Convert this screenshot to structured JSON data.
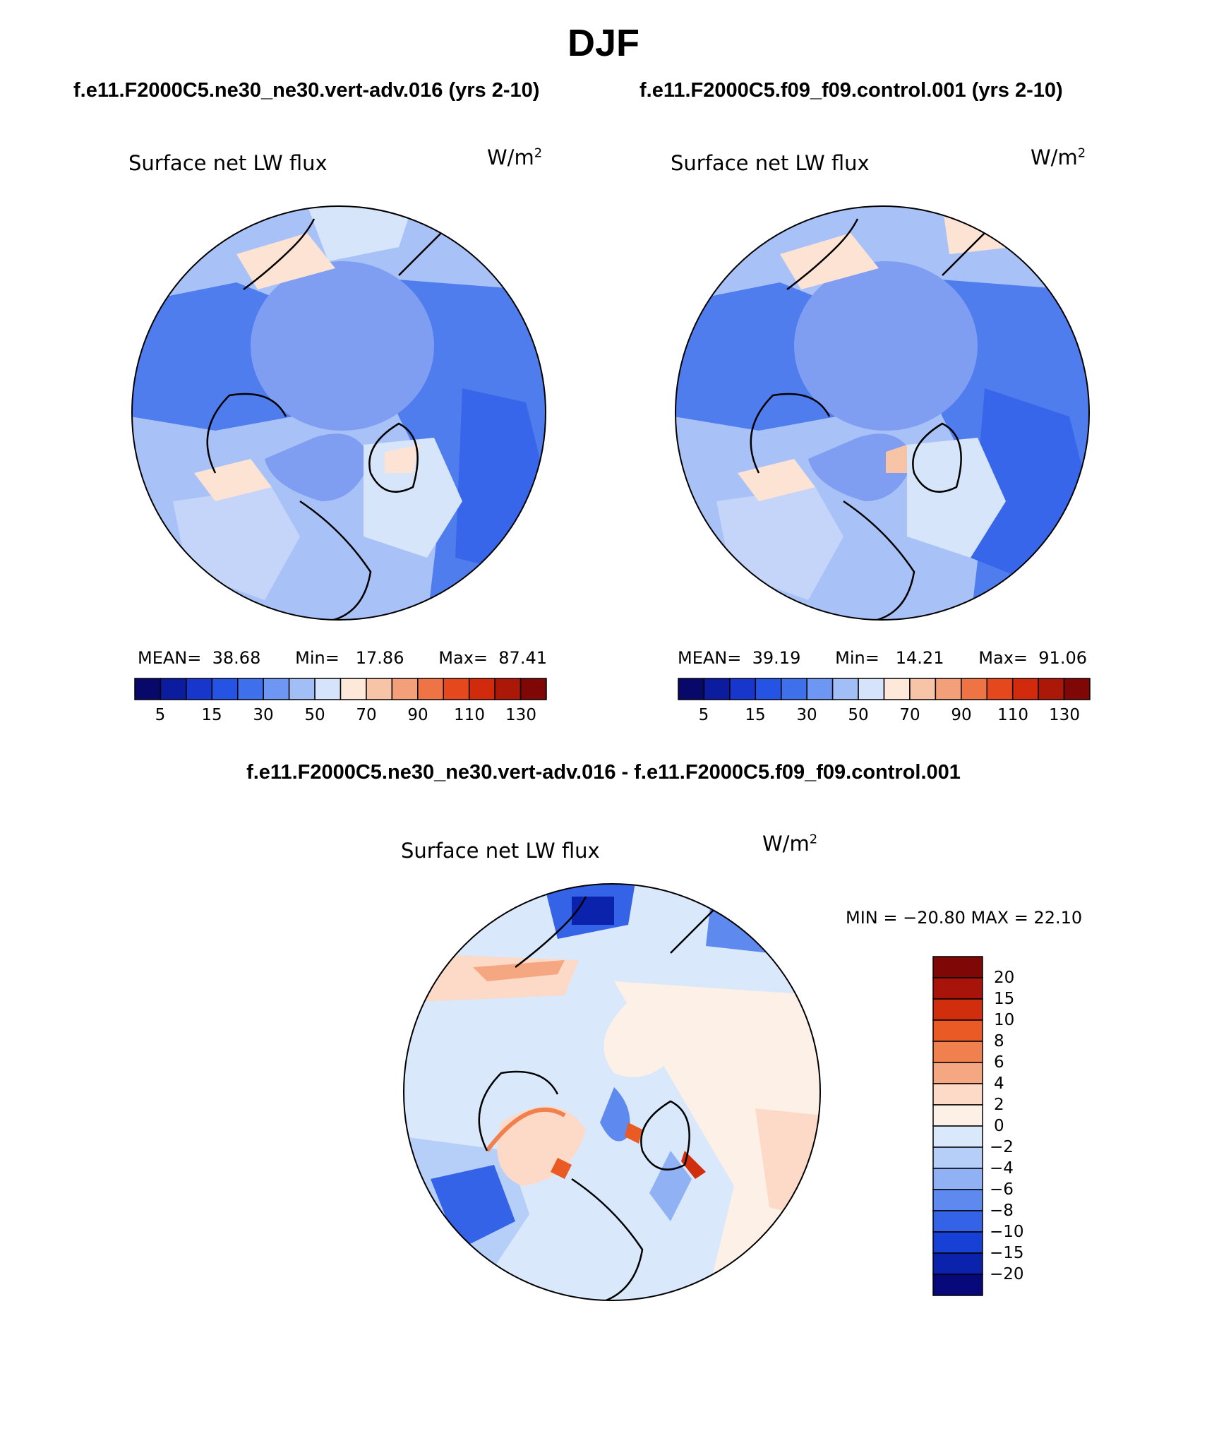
{
  "title": "DJF",
  "panels": [
    {
      "case_title": "f.e11.F2000C5.ne30_ne30.vert-adv.016 (yrs 2-10)",
      "variable": "Surface net LW flux",
      "units_base": "W/m",
      "units_exp": "2",
      "stats": {
        "mean_label": "MEAN=",
        "mean": "38.68",
        "min_label": "Min=",
        "min": "17.86",
        "max_label": "Max=",
        "max": "87.41"
      }
    },
    {
      "case_title": "f.e11.F2000C5.f09_f09.control.001 (yrs 2-10)",
      "variable": "Surface net LW flux",
      "units_base": "W/m",
      "units_exp": "2",
      "stats": {
        "mean_label": "MEAN=",
        "mean": "39.19",
        "min_label": "Min=",
        "min": "14.21",
        "max_label": "Max=",
        "max": "91.06"
      }
    }
  ],
  "abs_colorbar": {
    "colors": [
      "#08086b",
      "#0b1c9e",
      "#1736cc",
      "#2553e3",
      "#3f70ec",
      "#6d97f3",
      "#a2bef7",
      "#d5e4fb",
      "#fde8da",
      "#f8c4a8",
      "#f39f7a",
      "#ee7445",
      "#e6481e",
      "#d22a0c",
      "#ab1808",
      "#7f0705"
    ],
    "tick_labels": [
      "5",
      "15",
      "30",
      "50",
      "70",
      "90",
      "110",
      "130"
    ]
  },
  "difference": {
    "title": "f.e11.F2000C5.ne30_ne30.vert-adv.016 - f.e11.F2000C5.f09_f09.control.001",
    "variable": "Surface net LW flux",
    "units_base": "W/m",
    "units_exp": "2",
    "minmax_text": "MIN = −20.80 MAX =  22.10",
    "colorbar": {
      "colors_top_to_bottom": [
        "#7f0705",
        "#a8140a",
        "#d12e0e",
        "#ea5a24",
        "#f1804f",
        "#f5a782",
        "#fcdac7",
        "#fdf0e6",
        "#d9e8fb",
        "#b6cff8",
        "#90b2f4",
        "#5e8aef",
        "#3563e8",
        "#1740d6",
        "#0b22ad",
        "#07097b"
      ],
      "tick_labels_top_to_bottom": [
        "20",
        "15",
        "10",
        "8",
        "6",
        "4",
        "2",
        "0",
        "−2",
        "−4",
        "−6",
        "−8",
        "−10",
        "−15",
        "−20"
      ]
    }
  }
}
